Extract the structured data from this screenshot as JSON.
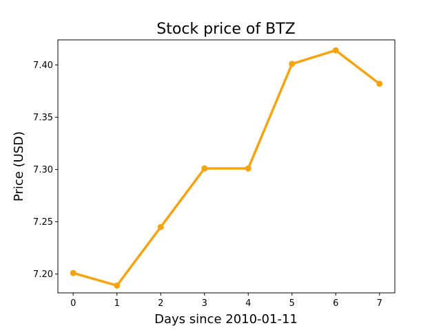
{
  "chart_data": {
    "type": "line",
    "title": "Stock price of BTZ",
    "xlabel": "Days since 2010-01-11",
    "ylabel": "Price (USD)",
    "x": [
      0,
      1,
      2,
      3,
      4,
      5,
      6,
      7
    ],
    "series": [
      {
        "values": [
          7.201,
          7.189,
          7.245,
          7.301,
          7.301,
          7.401,
          7.414,
          7.382
        ]
      }
    ],
    "xlim": [
      -0.35,
      7.35
    ],
    "ylim": [
      7.182,
      7.424
    ],
    "xticks": [
      0,
      1,
      2,
      3,
      4,
      5,
      6,
      7
    ],
    "xtick_labels": [
      "0",
      "1",
      "2",
      "3",
      "4",
      "5",
      "6",
      "7"
    ],
    "yticks": [
      7.2,
      7.25,
      7.3,
      7.35,
      7.4
    ],
    "ytick_labels": [
      "7.20",
      "7.25",
      "7.30",
      "7.35",
      "7.40"
    ],
    "line_color": "#f5a30f",
    "grid": false,
    "legend": false
  }
}
